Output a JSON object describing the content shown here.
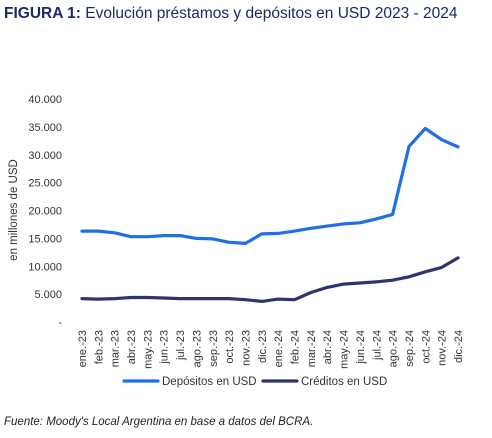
{
  "figure": {
    "label": "FIGURA 1:",
    "title": "Evolución préstamos y depósitos en USD 2023 - 2024"
  },
  "source": "Fuente: Moody's Local Argentina en base a datos del BCRA.",
  "chart_data": {
    "type": "line",
    "ylabel": "en millones de USD",
    "xlabel": "",
    "ylim": [
      0,
      40000
    ],
    "yticks": [
      0,
      5000,
      10000,
      15000,
      20000,
      25000,
      30000,
      35000,
      40000
    ],
    "ytick_labels": [
      "-",
      "5.000",
      "10.000",
      "15.000",
      "20.000",
      "25.000",
      "30.000",
      "35.000",
      "40.000"
    ],
    "categories": [
      "ene.-23",
      "feb.-23",
      "mar.-23",
      "abr.-23",
      "may.-23",
      "jun.-23",
      "jul.-23",
      "ago.-23",
      "sep.-23",
      "oct.-23",
      "nov.-23",
      "dic.-23",
      "ene.-24",
      "feb.-24",
      "mar.-24",
      "abr.-24",
      "may.-24",
      "jun.-24",
      "jul.-24",
      "ago.-24",
      "sep.-24",
      "oct.-24",
      "nov.-24",
      "dic.-24"
    ],
    "grid": false,
    "legend_position": "bottom",
    "series": [
      {
        "name": "Depósitos en USD",
        "color": "#1f6fe8",
        "values": [
          16300,
          16300,
          16000,
          15300,
          15300,
          15500,
          15500,
          15000,
          14900,
          14300,
          14100,
          15800,
          15900,
          16300,
          16800,
          17200,
          17600,
          17800,
          18500,
          19300,
          31500,
          34700,
          32700,
          31400
        ]
      },
      {
        "name": "Créditos en USD",
        "color": "#2f3470",
        "values": [
          4200,
          4100,
          4200,
          4400,
          4400,
          4300,
          4200,
          4200,
          4200,
          4200,
          4000,
          3700,
          4100,
          4000,
          5300,
          6200,
          6800,
          7000,
          7200,
          7500,
          8100,
          9000,
          9800,
          11500
        ]
      }
    ]
  }
}
